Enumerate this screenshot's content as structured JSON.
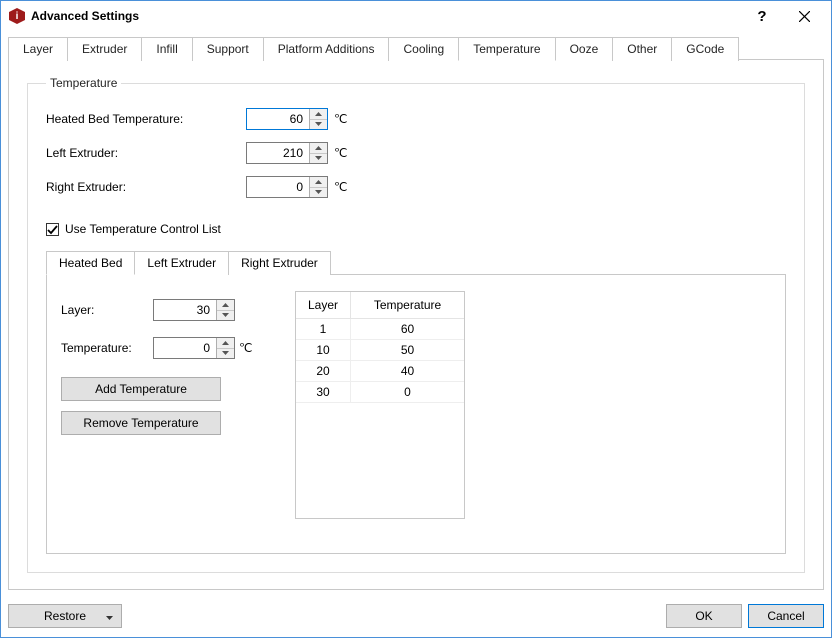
{
  "window": {
    "title": "Advanced Settings"
  },
  "tabs": {
    "items": [
      "Layer",
      "Extruder",
      "Infill",
      "Support",
      "Platform Additions",
      "Cooling",
      "Temperature",
      "Ooze",
      "Other",
      "GCode"
    ],
    "active": "Temperature"
  },
  "temperature": {
    "legend": "Temperature",
    "heated_bed_label": "Heated Bed Temperature:",
    "heated_bed_value": "60",
    "left_extruder_label": "Left Extruder:",
    "left_extruder_value": "210",
    "right_extruder_label": "Right Extruder:",
    "right_extruder_value": "0",
    "unit": "℃",
    "use_list_label": "Use Temperature Control List",
    "use_list_checked": true
  },
  "sub_tabs": {
    "items": [
      "Heated Bed",
      "Left Extruder",
      "Right Extruder"
    ],
    "active": "Heated Bed"
  },
  "control": {
    "layer_label": "Layer:",
    "layer_value": "30",
    "temp_label": "Temperature:",
    "temp_value": "0",
    "unit": "℃",
    "add_button": "Add Temperature",
    "remove_button": "Remove Temperature"
  },
  "table": {
    "headers": {
      "layer": "Layer",
      "temperature": "Temperature"
    },
    "rows": [
      {
        "layer": "1",
        "temperature": "60"
      },
      {
        "layer": "10",
        "temperature": "50"
      },
      {
        "layer": "20",
        "temperature": "40"
      },
      {
        "layer": "30",
        "temperature": "0"
      }
    ]
  },
  "buttons": {
    "restore": "Restore",
    "ok": "OK",
    "cancel": "Cancel"
  },
  "colors": {
    "window_border": "#4a90d9",
    "tab_border": "#c8c8c8",
    "button_bg": "#e1e1e1",
    "button_border": "#adadad",
    "primary_border": "#0078d7",
    "app_icon_bg": "#9e1b1b"
  }
}
